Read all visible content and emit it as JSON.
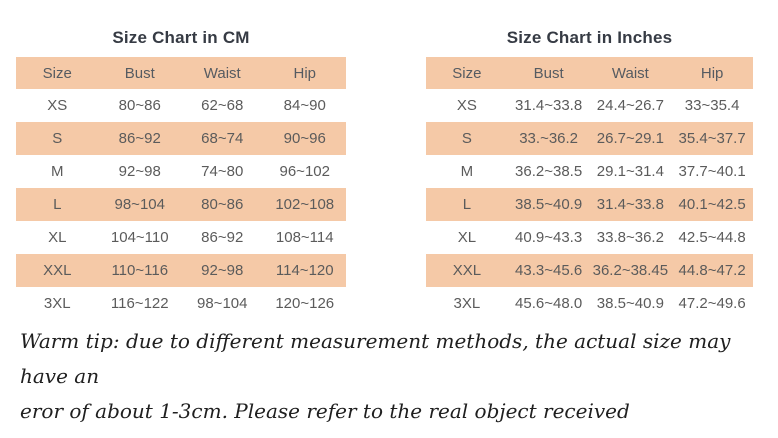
{
  "colors": {
    "band": "#f5c9a7",
    "header_text": "#565b61",
    "cell_text": "#5b5b5b",
    "title_text": "#363b44",
    "note_text": "#1f1f1f",
    "background": "#ffffff"
  },
  "chart_data": [
    {
      "type": "table",
      "title": "Size Chart in CM",
      "columns": [
        "Size",
        "Bust",
        "Waist",
        "Hip"
      ],
      "rows": [
        [
          "XS",
          "80~86",
          "62~68",
          "84~90"
        ],
        [
          "S",
          "86~92",
          "68~74",
          "90~96"
        ],
        [
          "M",
          "92~98",
          "74~80",
          "96~102"
        ],
        [
          "L",
          "98~104",
          "80~86",
          "102~108"
        ],
        [
          "XL",
          "104~110",
          "86~92",
          "108~114"
        ],
        [
          "XXL",
          "110~116",
          "92~98",
          "114~120"
        ],
        [
          "3XL",
          "116~122",
          "98~104",
          "120~126"
        ]
      ]
    },
    {
      "type": "table",
      "title": "Size Chart in Inches",
      "columns": [
        "Size",
        "Bust",
        "Waist",
        "Hip"
      ],
      "rows": [
        [
          "XS",
          "31.4~33.8",
          "24.4~26.7",
          "33~35.4"
        ],
        [
          "S",
          "33.~36.2",
          "26.7~29.1",
          "35.4~37.7"
        ],
        [
          "M",
          "36.2~38.5",
          "29.1~31.4",
          "37.7~40.1"
        ],
        [
          "L",
          "38.5~40.9",
          "31.4~33.8",
          "40.1~42.5"
        ],
        [
          "XL",
          "40.9~43.3",
          "33.8~36.2",
          "42.5~44.8"
        ],
        [
          "XXL",
          "43.3~45.6",
          "36.2~38.45",
          "44.8~47.2"
        ],
        [
          "3XL",
          "45.6~48.0",
          "38.5~40.9",
          "47.2~49.6"
        ]
      ]
    }
  ],
  "note": {
    "line1": "Warm tip: due to different measurement methods, the actual size may have an",
    "line2": "eror of about 1-3cm. Please refer to the real object received"
  }
}
